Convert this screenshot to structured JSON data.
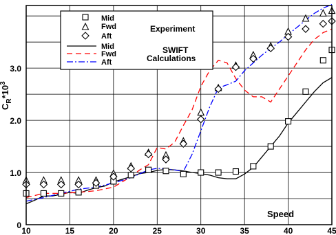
{
  "chart_data": {
    "type": "scatter",
    "ylabel_main": "C",
    "ylabel_sub": "R",
    "ylabel_tail": "*10",
    "ylabel_sup": "3",
    "xlabel": "Speed",
    "xlim": [
      10,
      45
    ],
    "ylim": [
      0,
      4.2
    ],
    "x_ticks": [
      10,
      15,
      20,
      25,
      30,
      35,
      40,
      45
    ],
    "y_ticks": [
      0,
      1.0,
      2.0,
      3.0
    ],
    "y_tick_labels": [
      "0",
      "1.0",
      "2.0",
      "3.0"
    ],
    "grid": true,
    "legend_position": "top-left",
    "legend_groups": [
      {
        "label": "Experiment",
        "entries": [
          "Mid",
          "Fwd",
          "Aft"
        ]
      },
      {
        "label_lines": [
          "SWIFT",
          "Calculations"
        ],
        "entries": [
          "Mid",
          "Fwd",
          "Aft"
        ]
      }
    ],
    "colors": {
      "experiment": "#000000",
      "mid_line": "#000000",
      "fwd_line": "#ff0000",
      "aft_line": "#0000ff"
    },
    "series": [
      {
        "name": "Mid",
        "group": "Experiment",
        "marker": "square",
        "x": [
          10,
          12,
          14,
          16,
          18,
          20,
          22,
          24,
          26,
          28,
          30,
          32,
          34,
          36,
          38,
          40,
          42,
          44,
          45
        ],
        "y": [
          0.6,
          0.6,
          0.6,
          0.62,
          0.75,
          0.83,
          0.95,
          1.05,
          1.03,
          0.97,
          1.0,
          1.0,
          1.02,
          1.12,
          1.5,
          1.98,
          2.55,
          3.15,
          3.35
        ]
      },
      {
        "name": "Fwd",
        "group": "Experiment",
        "marker": "triangle",
        "x": [
          10,
          12,
          14,
          16,
          18,
          20,
          22,
          24,
          26,
          28,
          30,
          32,
          34,
          36,
          38,
          40,
          42,
          44,
          45
        ],
        "y": [
          0.85,
          0.85,
          0.85,
          0.85,
          0.85,
          0.98,
          1.12,
          1.38,
          1.33,
          1.6,
          2.15,
          2.62,
          3.05,
          3.25,
          3.42,
          3.7,
          3.95,
          4.05,
          4.1
        ]
      },
      {
        "name": "Aft",
        "group": "Experiment",
        "marker": "diamond",
        "x": [
          10,
          12,
          14,
          16,
          18,
          20,
          22,
          24,
          26,
          28,
          30,
          32,
          34,
          36,
          38,
          40,
          42,
          44,
          45
        ],
        "y": [
          0.77,
          0.77,
          0.77,
          0.77,
          0.8,
          0.92,
          1.08,
          1.35,
          1.25,
          1.55,
          2.02,
          2.6,
          3.02,
          3.18,
          3.38,
          3.6,
          3.75,
          3.85,
          3.9
        ]
      },
      {
        "name": "Mid",
        "group": "SWIFT Calculations",
        "line": "solid",
        "x": [
          10,
          11,
          12,
          13,
          14,
          15,
          16,
          17,
          18,
          19,
          20,
          21,
          22,
          23,
          24,
          25,
          26,
          27,
          28,
          29,
          30,
          31,
          32,
          33,
          34,
          35,
          36,
          37,
          38,
          39,
          40,
          41,
          42,
          43,
          44,
          45
        ],
        "y": [
          0.4,
          0.47,
          0.55,
          0.55,
          0.58,
          0.62,
          0.6,
          0.66,
          0.71,
          0.74,
          0.82,
          0.87,
          0.92,
          0.98,
          1.0,
          1.04,
          1.06,
          1.05,
          1.03,
          1.0,
          0.98,
          0.95,
          0.9,
          0.88,
          0.88,
          0.97,
          1.1,
          1.3,
          1.5,
          1.7,
          1.95,
          2.15,
          2.35,
          2.55,
          2.72,
          2.82
        ]
      },
      {
        "name": "Fwd",
        "group": "SWIFT Calculations",
        "line": "dashed",
        "x": [
          10,
          12,
          14,
          16,
          18,
          20,
          22,
          23,
          24,
          25,
          26,
          27,
          28,
          29,
          30,
          31,
          32,
          33,
          34,
          35,
          36,
          37,
          38,
          39,
          40,
          41,
          42,
          43,
          44,
          45
        ],
        "y": [
          0.52,
          0.6,
          0.6,
          0.62,
          0.65,
          0.72,
          0.92,
          1.05,
          1.15,
          1.48,
          1.45,
          1.58,
          1.9,
          2.2,
          2.65,
          2.95,
          3.15,
          3.1,
          2.8,
          2.58,
          2.45,
          2.45,
          2.35,
          2.6,
          2.85,
          3.1,
          3.35,
          3.55,
          3.68,
          3.75
        ]
      },
      {
        "name": "Aft",
        "group": "SWIFT Calculations",
        "line": "dashdot",
        "x": [
          10,
          12,
          14,
          16,
          18,
          20,
          22,
          24,
          25,
          26,
          27,
          28,
          29,
          30,
          31,
          32,
          33,
          34,
          35,
          36,
          37,
          38,
          39,
          40,
          41,
          42,
          43,
          44,
          45
        ],
        "y": [
          0.45,
          0.52,
          0.6,
          0.68,
          0.72,
          0.8,
          0.9,
          1.05,
          1.08,
          1.07,
          1.05,
          1.02,
          1.35,
          1.8,
          2.25,
          2.62,
          2.68,
          2.75,
          2.95,
          3.1,
          3.25,
          3.38,
          3.5,
          3.65,
          3.78,
          3.92,
          4.05,
          4.15,
          4.22
        ]
      }
    ]
  }
}
